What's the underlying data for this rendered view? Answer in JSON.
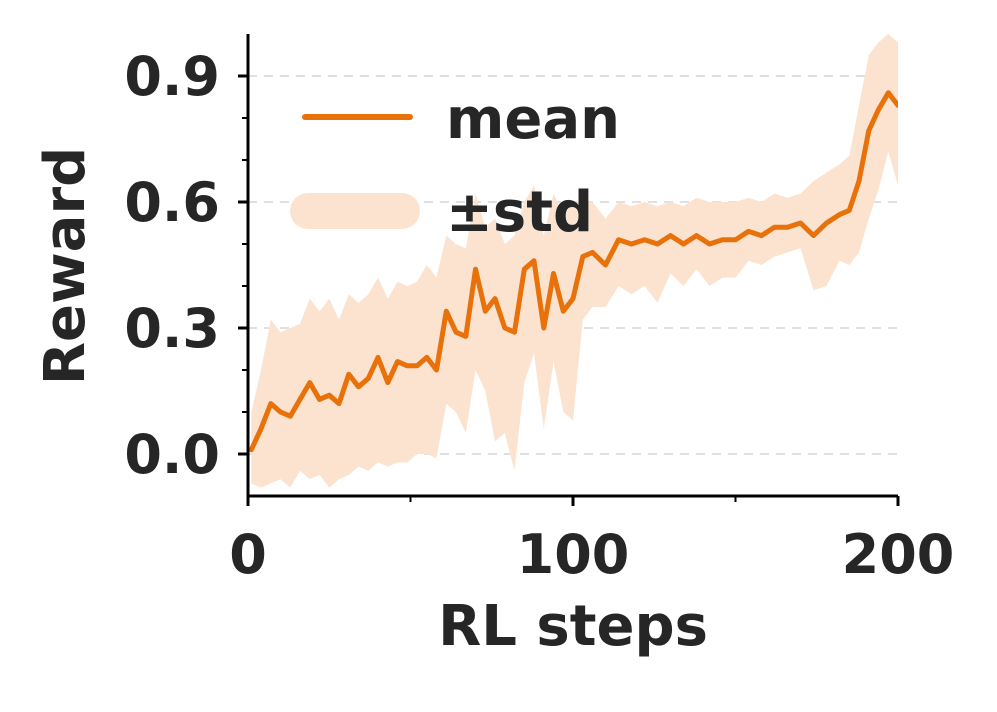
{
  "chart_data": {
    "type": "line",
    "title": "",
    "xlabel": "RL steps",
    "ylabel": "Reward",
    "xlim": [
      0,
      200
    ],
    "ylim": [
      -0.1,
      1.0
    ],
    "xticks": [
      0,
      100,
      200
    ],
    "xtick_labels": [
      "0",
      "100",
      "200"
    ],
    "xminor_ticks": [
      50,
      150
    ],
    "yticks": [
      0.0,
      0.3,
      0.6,
      0.9
    ],
    "ytick_labels": [
      "0.0",
      "0.3",
      "0.6",
      "0.9"
    ],
    "grid": "horizontal dashed",
    "legend": {
      "placement": "top-left",
      "entries": [
        "mean",
        "±std"
      ]
    },
    "colors": {
      "mean": "#e8710a",
      "band": "#fbe3d0",
      "grid": "#e0e0e0",
      "axis": "#000000",
      "text": "#262626"
    },
    "series": [
      {
        "name": "mean",
        "kind": "line",
        "x": [
          1,
          4,
          7,
          10,
          13,
          16,
          19,
          22,
          25,
          28,
          31,
          34,
          37,
          40,
          43,
          46,
          49,
          52,
          55,
          58,
          61,
          64,
          67,
          70,
          73,
          76,
          79,
          82,
          85,
          88,
          91,
          94,
          97,
          100,
          103,
          106,
          110,
          114,
          118,
          122,
          126,
          130,
          134,
          138,
          142,
          146,
          150,
          154,
          158,
          162,
          166,
          170,
          174,
          178,
          182,
          185,
          188,
          191,
          194,
          197,
          200
        ],
        "y": [
          0.01,
          0.06,
          0.12,
          0.1,
          0.09,
          0.13,
          0.17,
          0.13,
          0.14,
          0.12,
          0.19,
          0.16,
          0.18,
          0.23,
          0.17,
          0.22,
          0.21,
          0.21,
          0.23,
          0.2,
          0.34,
          0.29,
          0.28,
          0.44,
          0.34,
          0.37,
          0.3,
          0.29,
          0.44,
          0.46,
          0.3,
          0.43,
          0.34,
          0.37,
          0.47,
          0.48,
          0.45,
          0.51,
          0.5,
          0.51,
          0.5,
          0.52,
          0.5,
          0.52,
          0.5,
          0.51,
          0.51,
          0.53,
          0.52,
          0.54,
          0.54,
          0.55,
          0.52,
          0.55,
          0.57,
          0.58,
          0.65,
          0.77,
          0.82,
          0.86,
          0.83
        ]
      },
      {
        "name": "±std",
        "kind": "band",
        "x": [
          1,
          4,
          7,
          10,
          13,
          16,
          19,
          22,
          25,
          28,
          31,
          34,
          37,
          40,
          43,
          46,
          49,
          52,
          55,
          58,
          61,
          64,
          67,
          70,
          73,
          76,
          79,
          82,
          85,
          88,
          91,
          94,
          97,
          100,
          103,
          106,
          110,
          114,
          118,
          122,
          126,
          130,
          134,
          138,
          142,
          146,
          150,
          154,
          158,
          162,
          166,
          170,
          174,
          178,
          182,
          185,
          188,
          191,
          194,
          197,
          200
        ],
        "lower": [
          -0.07,
          -0.08,
          -0.07,
          -0.06,
          -0.08,
          -0.04,
          -0.06,
          -0.05,
          -0.08,
          -0.06,
          -0.05,
          -0.03,
          -0.04,
          -0.02,
          -0.03,
          -0.02,
          -0.02,
          0.0,
          0.0,
          -0.01,
          0.12,
          0.1,
          0.05,
          0.2,
          0.15,
          0.03,
          0.05,
          -0.04,
          0.17,
          0.24,
          0.06,
          0.22,
          0.1,
          0.08,
          0.32,
          0.35,
          0.35,
          0.4,
          0.38,
          0.4,
          0.36,
          0.43,
          0.4,
          0.44,
          0.4,
          0.42,
          0.42,
          0.46,
          0.45,
          0.47,
          0.48,
          0.49,
          0.39,
          0.4,
          0.46,
          0.45,
          0.48,
          0.56,
          0.63,
          0.72,
          0.64
        ],
        "upper": [
          0.1,
          0.2,
          0.32,
          0.29,
          0.3,
          0.31,
          0.37,
          0.34,
          0.37,
          0.32,
          0.38,
          0.36,
          0.38,
          0.42,
          0.37,
          0.41,
          0.4,
          0.41,
          0.45,
          0.42,
          0.52,
          0.5,
          0.49,
          0.62,
          0.54,
          0.56,
          0.5,
          0.52,
          0.6,
          0.64,
          0.52,
          0.62,
          0.57,
          0.6,
          0.6,
          0.6,
          0.56,
          0.6,
          0.59,
          0.6,
          0.59,
          0.6,
          0.59,
          0.61,
          0.6,
          0.6,
          0.6,
          0.61,
          0.6,
          0.62,
          0.61,
          0.62,
          0.65,
          0.67,
          0.69,
          0.71,
          0.83,
          0.95,
          0.98,
          1.0,
          0.98
        ]
      }
    ]
  }
}
